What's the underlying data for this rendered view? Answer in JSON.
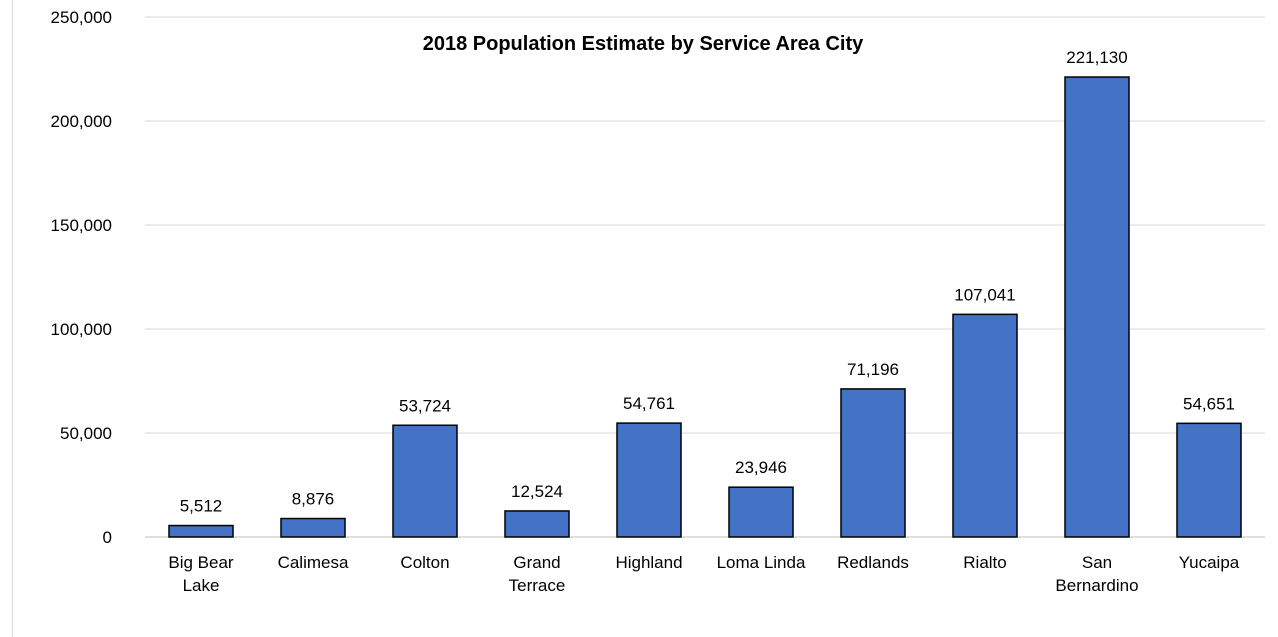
{
  "chart_data": {
    "type": "bar",
    "title": "2018 Population Estimate by Service Area City",
    "xlabel": "",
    "ylabel": "",
    "categories": [
      [
        "Big Bear",
        "Lake"
      ],
      [
        "Calimesa"
      ],
      [
        "Colton"
      ],
      [
        "Grand",
        "Terrace"
      ],
      [
        "Highland"
      ],
      [
        "Loma Linda"
      ],
      [
        "Redlands"
      ],
      [
        "Rialto"
      ],
      [
        "San",
        "Bernardino"
      ],
      [
        "Yucaipa"
      ]
    ],
    "values": [
      5512,
      8876,
      53724,
      12524,
      54761,
      23946,
      71196,
      107041,
      221130,
      54651
    ],
    "data_labels": [
      "5,512",
      "8,876",
      "53,724",
      "12,524",
      "54,761",
      "23,946",
      "71,196",
      "107,041",
      "221,130",
      "54,651"
    ],
    "ylim": [
      0,
      250000
    ],
    "yticks": [
      0,
      50000,
      100000,
      150000,
      200000,
      250000
    ],
    "ytick_labels": [
      "0",
      "50,000",
      "100,000",
      "150,000",
      "200,000",
      "250,000"
    ],
    "grid": true,
    "legend": "none",
    "bar_color": "#4472C4",
    "bar_edge_color": "#000000",
    "grid_color": "#d9d9d9"
  }
}
